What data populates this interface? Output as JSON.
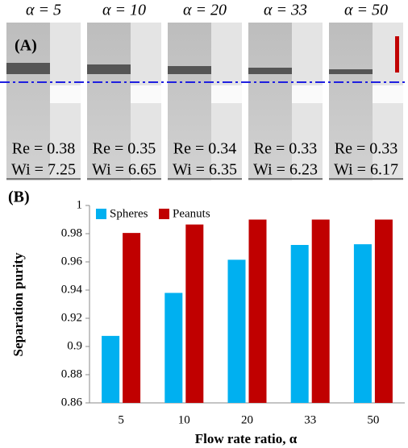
{
  "panel_a": {
    "label": "(A)",
    "images": [
      {
        "alpha": "α = 5",
        "re": "Re = 0.38",
        "wi": "Wi = 7.25"
      },
      {
        "alpha": "α = 10",
        "re": "Re = 0.35",
        "wi": "Wi = 6.65"
      },
      {
        "alpha": "α = 20",
        "re": "Re = 0.34",
        "wi": "Wi = 6.35"
      },
      {
        "alpha": "α = 33",
        "re": "Re = 0.33",
        "wi": "Wi = 6.23"
      },
      {
        "alpha": "α = 50",
        "re": "Re = 0.33",
        "wi": "Wi = 6.17"
      }
    ]
  },
  "chart_data": {
    "type": "bar",
    "panel_label": "(B)",
    "x_label": "Flow rate ratio, α",
    "y_label": "Separation purity",
    "categories": [
      "5",
      "10",
      "20",
      "33",
      "50"
    ],
    "series": [
      {
        "name": "Spheres",
        "color": "#00b0f0",
        "values": [
          0.9075,
          0.938,
          0.9615,
          0.972,
          0.9725
        ]
      },
      {
        "name": "Peanuts",
        "color": "#c00000",
        "values": [
          0.9805,
          0.9865,
          0.99,
          0.99,
          0.99
        ]
      }
    ],
    "ylim": [
      0.86,
      1
    ],
    "yticks": [
      0.86,
      0.88,
      0.9,
      0.92,
      0.94,
      0.96,
      0.98,
      1
    ],
    "legend": "upper left"
  }
}
